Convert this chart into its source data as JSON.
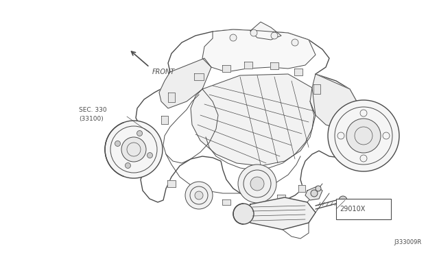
{
  "background_color": "#ffffff",
  "line_color": "#4a4a4a",
  "label_color": "#4a4a4a",
  "fig_width": 6.4,
  "fig_height": 3.72,
  "dpi": 100,
  "title_text": "J333009R",
  "sec_text1": "SEC. 330",
  "sec_text2": "(33100)",
  "part_text": "29010X",
  "front_text": "FRONT"
}
